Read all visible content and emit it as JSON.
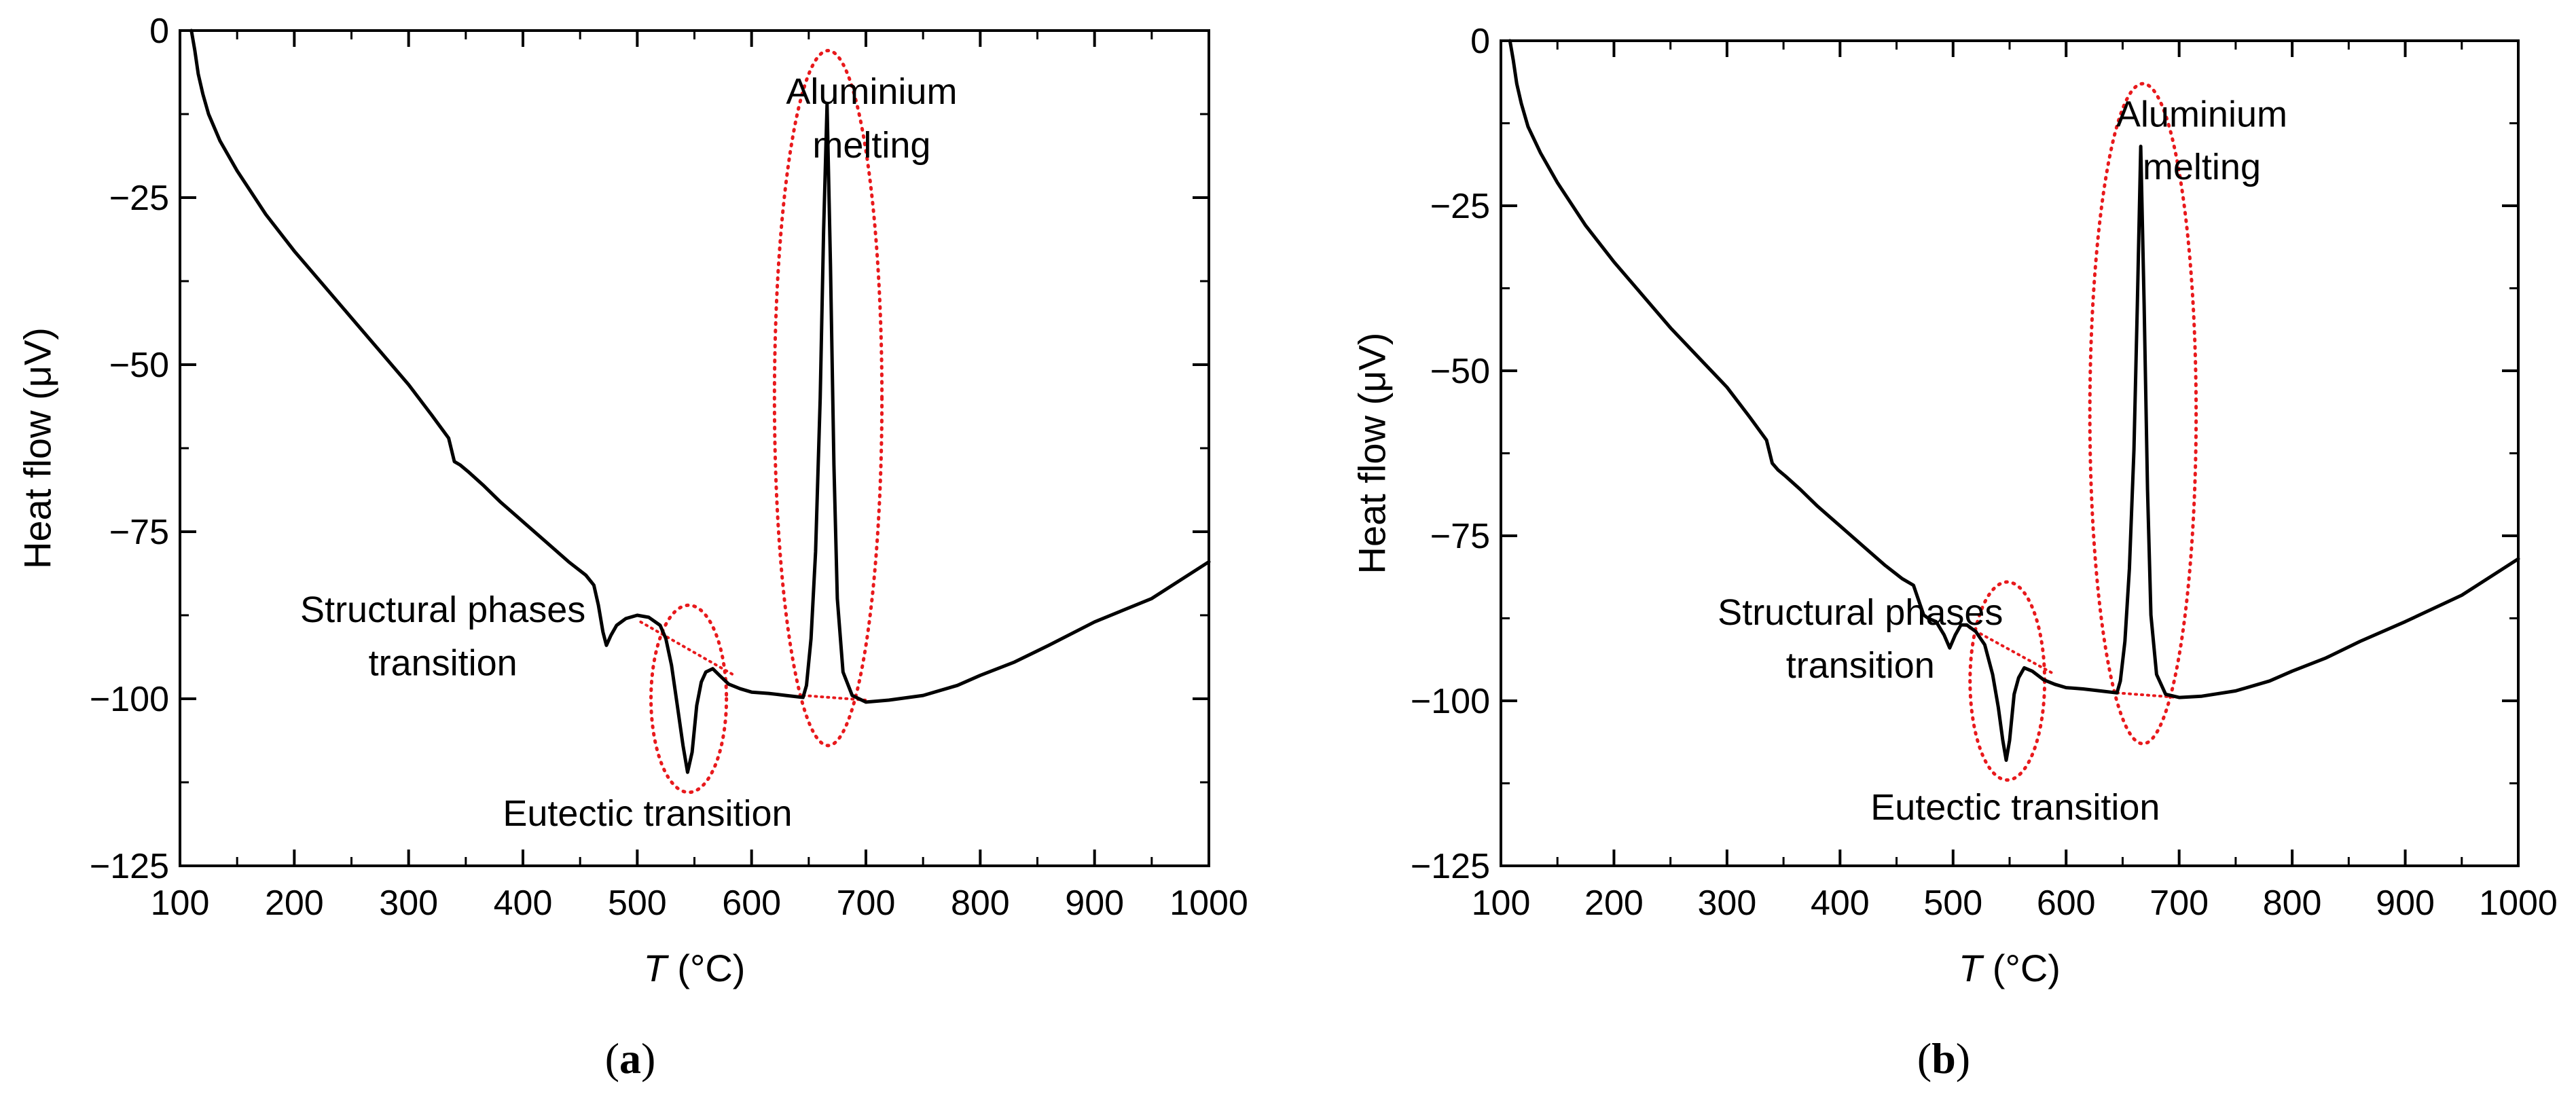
{
  "chart_data": [
    {
      "type": "line",
      "panel_label": "(a)",
      "panel_letter": "a",
      "xlabel_var": "T",
      "xlabel_unit": " (°C)",
      "ylabel": "Heat flow (μV)",
      "xlim": [
        100,
        1000
      ],
      "ylim": [
        -125,
        0
      ],
      "x_ticks": [
        100,
        200,
        300,
        400,
        500,
        600,
        700,
        800,
        900,
        1000
      ],
      "x_tick_labels": [
        "100",
        "200",
        "300",
        "400",
        "500",
        "600",
        "700",
        "800",
        "900",
        "1000"
      ],
      "y_ticks": [
        0,
        -25,
        -50,
        -75,
        -100,
        -125
      ],
      "y_tick_labels": [
        "0",
        "−25",
        "−50",
        "−75",
        "−100",
        "−125"
      ],
      "annotations": [
        {
          "text": "Aluminium",
          "x": 705,
          "y": -11
        },
        {
          "text": "melting",
          "x": 705,
          "y": -19
        },
        {
          "text": "Structural phases",
          "x": 330,
          "y": -88.5
        },
        {
          "text": "transition",
          "x": 330,
          "y": -96.5
        },
        {
          "text": "Eutectic transition",
          "x": 509,
          "y": -119
        }
      ],
      "ellipses": [
        {
          "cx": 545,
          "cy": -100,
          "rx": 33,
          "ry": 14
        },
        {
          "cx": 667,
          "cy": -55,
          "rx": 47,
          "ry": 52
        }
      ],
      "baselines": [
        {
          "x": [
            503,
            585
          ],
          "y": [
            -88.5,
            -96.5
          ]
        },
        {
          "x": [
            645,
            700
          ],
          "y": [
            -99.5,
            -100.2
          ]
        }
      ],
      "series": [
        {
          "name": "heat flow",
          "points": [
            [
              110,
              0
            ],
            [
              113,
              -3
            ],
            [
              116,
              -6.5
            ],
            [
              120,
              -9.5
            ],
            [
              125,
              -12.5
            ],
            [
              135,
              -16.5
            ],
            [
              150,
              -21
            ],
            [
              175,
              -27.5
            ],
            [
              200,
              -33
            ],
            [
              225,
              -38
            ],
            [
              250,
              -43
            ],
            [
              275,
              -48
            ],
            [
              300,
              -53
            ],
            [
              320,
              -57.5
            ],
            [
              335,
              -61
            ],
            [
              340,
              -64.5
            ],
            [
              345,
              -65
            ],
            [
              352,
              -66
            ],
            [
              365,
              -68
            ],
            [
              380,
              -70.5
            ],
            [
              400,
              -73.5
            ],
            [
              420,
              -76.5
            ],
            [
              440,
              -79.5
            ],
            [
              455,
              -81.5
            ],
            [
              462,
              -83
            ],
            [
              466,
              -86
            ],
            [
              470,
              -90
            ],
            [
              473,
              -92
            ],
            [
              477,
              -90.5
            ],
            [
              482,
              -89
            ],
            [
              490,
              -88
            ],
            [
              500,
              -87.5
            ],
            [
              510,
              -87.8
            ],
            [
              520,
              -89
            ],
            [
              525,
              -91
            ],
            [
              530,
              -95
            ],
            [
              535,
              -101
            ],
            [
              540,
              -107
            ],
            [
              544,
              -111
            ],
            [
              548,
              -108
            ],
            [
              552,
              -101
            ],
            [
              556,
              -97.5
            ],
            [
              560,
              -96
            ],
            [
              566,
              -95.5
            ],
            [
              572,
              -96.5
            ],
            [
              580,
              -97.8
            ],
            [
              590,
              -98.5
            ],
            [
              600,
              -99
            ],
            [
              615,
              -99.2
            ],
            [
              630,
              -99.5
            ],
            [
              645,
              -99.8
            ],
            [
              648,
              -98
            ],
            [
              652,
              -91
            ],
            [
              656,
              -78
            ],
            [
              660,
              -55
            ],
            [
              663,
              -30
            ],
            [
              666,
              -11
            ],
            [
              669,
              -35
            ],
            [
              672,
              -65
            ],
            [
              675,
              -85
            ],
            [
              680,
              -96
            ],
            [
              688,
              -99.5
            ],
            [
              700,
              -100.5
            ],
            [
              720,
              -100.2
            ],
            [
              750,
              -99.5
            ],
            [
              780,
              -98
            ],
            [
              800,
              -96.5
            ],
            [
              830,
              -94.5
            ],
            [
              860,
              -92
            ],
            [
              900,
              -88.5
            ],
            [
              950,
              -85
            ],
            [
              1000,
              -79.5
            ]
          ]
        }
      ]
    },
    {
      "type": "line",
      "panel_label": "(b)",
      "panel_letter": "b",
      "xlabel_var": "T",
      "xlabel_unit": " (°C)",
      "ylabel": "Heat flow (μV)",
      "xlim": [
        100,
        1000
      ],
      "ylim": [
        -125,
        0
      ],
      "x_ticks": [
        100,
        200,
        300,
        400,
        500,
        600,
        700,
        800,
        900,
        1000
      ],
      "x_tick_labels": [
        "100",
        "200",
        "300",
        "400",
        "500",
        "600",
        "700",
        "800",
        "900",
        "1000"
      ],
      "y_ticks": [
        0,
        -25,
        -50,
        -75,
        -100,
        -125
      ],
      "y_tick_labels": [
        "0",
        "−25",
        "−50",
        "−75",
        "−100",
        "−125"
      ],
      "annotations": [
        {
          "text": "Aluminium",
          "x": 720,
          "y": -13
        },
        {
          "text": "melting",
          "x": 720,
          "y": -21
        },
        {
          "text": "Structural phases",
          "x": 418,
          "y": -88.5
        },
        {
          "text": "transition",
          "x": 418,
          "y": -96.5
        },
        {
          "text": "Eutectic transition",
          "x": 555,
          "y": -118
        }
      ],
      "ellipses": [
        {
          "cx": 548,
          "cy": -97,
          "rx": 33,
          "ry": 15
        },
        {
          "cx": 668,
          "cy": -56.5,
          "rx": 47,
          "ry": 50
        }
      ],
      "baselines": [
        {
          "x": [
            510,
            590
          ],
          "y": [
            -88.5,
            -96
          ]
        },
        {
          "x": [
            645,
            700
          ],
          "y": [
            -98.8,
            -99.5
          ]
        }
      ],
      "series": [
        {
          "name": "heat flow",
          "points": [
            [
              108,
              0
            ],
            [
              111,
              -3
            ],
            [
              114,
              -6.5
            ],
            [
              118,
              -9.5
            ],
            [
              124,
              -13
            ],
            [
              135,
              -17
            ],
            [
              150,
              -21.5
            ],
            [
              175,
              -28
            ],
            [
              200,
              -33.5
            ],
            [
              225,
              -38.5
            ],
            [
              250,
              -43.5
            ],
            [
              275,
              -48
            ],
            [
              300,
              -52.5
            ],
            [
              320,
              -57
            ],
            [
              335,
              -60.5
            ],
            [
              340,
              -64
            ],
            [
              345,
              -65
            ],
            [
              352,
              -66
            ],
            [
              365,
              -68
            ],
            [
              380,
              -70.5
            ],
            [
              400,
              -73.5
            ],
            [
              420,
              -76.5
            ],
            [
              440,
              -79.5
            ],
            [
              455,
              -81.5
            ],
            [
              465,
              -82.5
            ],
            [
              470,
              -85
            ],
            [
              474,
              -87
            ],
            [
              478,
              -87.5
            ],
            [
              485,
              -88
            ],
            [
              492,
              -90
            ],
            [
              497,
              -92
            ],
            [
              502,
              -90
            ],
            [
              507,
              -88.5
            ],
            [
              512,
              -88.5
            ],
            [
              520,
              -89.5
            ],
            [
              528,
              -91.5
            ],
            [
              535,
              -96
            ],
            [
              540,
              -101
            ],
            [
              544,
              -106
            ],
            [
              547,
              -109
            ],
            [
              550,
              -106
            ],
            [
              554,
              -99
            ],
            [
              558,
              -96.5
            ],
            [
              563,
              -95
            ],
            [
              570,
              -95.5
            ],
            [
              580,
              -96.8
            ],
            [
              590,
              -97.5
            ],
            [
              600,
              -98
            ],
            [
              615,
              -98.2
            ],
            [
              630,
              -98.5
            ],
            [
              645,
              -98.8
            ],
            [
              648,
              -97
            ],
            [
              652,
              -91
            ],
            [
              656,
              -80
            ],
            [
              660,
              -62
            ],
            [
              663,
              -40
            ],
            [
              666,
              -16
            ],
            [
              669,
              -40
            ],
            [
              672,
              -68
            ],
            [
              675,
              -87
            ],
            [
              680,
              -96
            ],
            [
              688,
              -99
            ],
            [
              700,
              -99.5
            ],
            [
              720,
              -99.3
            ],
            [
              750,
              -98.5
            ],
            [
              780,
              -97
            ],
            [
              800,
              -95.5
            ],
            [
              830,
              -93.5
            ],
            [
              860,
              -91
            ],
            [
              900,
              -88
            ],
            [
              950,
              -84
            ],
            [
              1000,
              -78.5
            ]
          ]
        }
      ]
    }
  ]
}
